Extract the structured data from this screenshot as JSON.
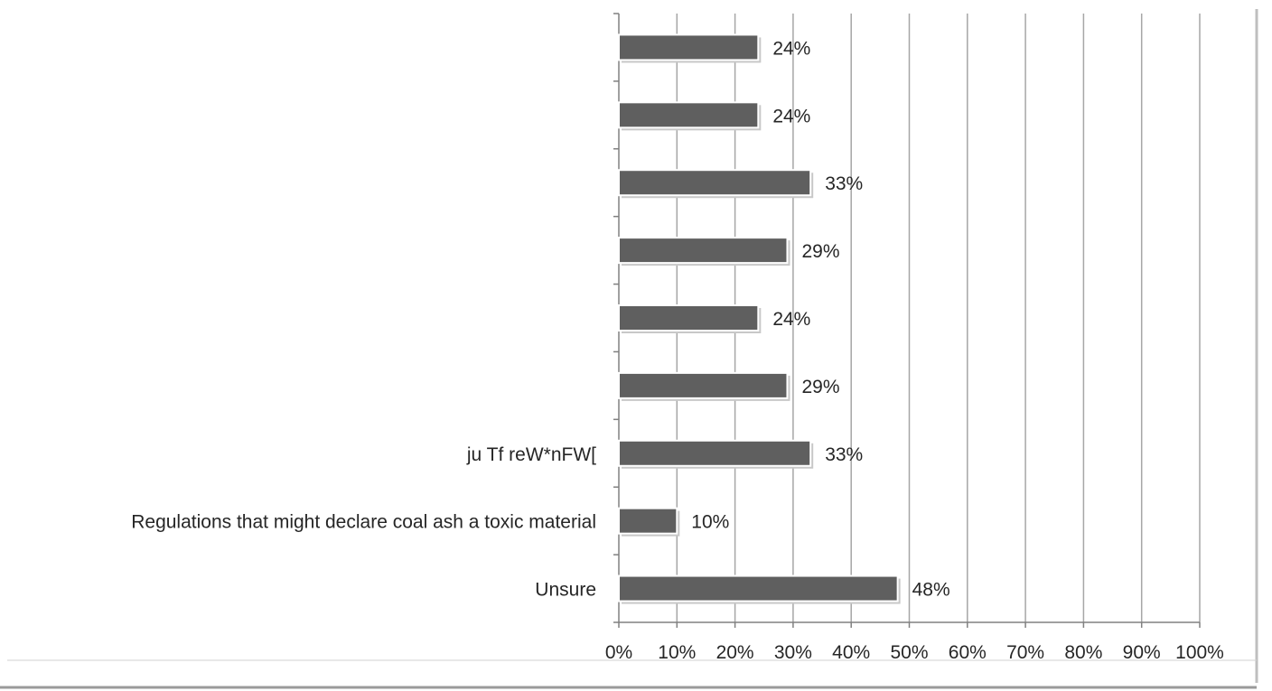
{
  "chart_data": {
    "type": "bar",
    "orientation": "horizontal",
    "categories": [
      "",
      "",
      "",
      "",
      "",
      "",
      "ju Tf reW*nFW[",
      "Regulations that might declare coal ash a toxic material",
      "Unsure"
    ],
    "values": [
      24,
      24,
      33,
      29,
      24,
      29,
      33,
      10,
      48
    ],
    "data_labels": [
      "24%",
      "24%",
      "33%",
      "29%",
      "24%",
      "29%",
      "33%",
      "10%",
      "48%"
    ],
    "x_ticks": [
      "0%",
      "10%",
      "20%",
      "30%",
      "40%",
      "50%",
      "60%",
      "70%",
      "80%",
      "90%",
      "100%"
    ],
    "xlim": [
      0,
      100
    ],
    "grid": true,
    "title": "",
    "xlabel": "",
    "ylabel": "",
    "colors": {
      "bar": "#5f5f5f",
      "bar_edge": "#ffffff",
      "grid": "#a6a6a6",
      "text": "#262626",
      "frame_shadow": "#bfbfbf"
    }
  }
}
